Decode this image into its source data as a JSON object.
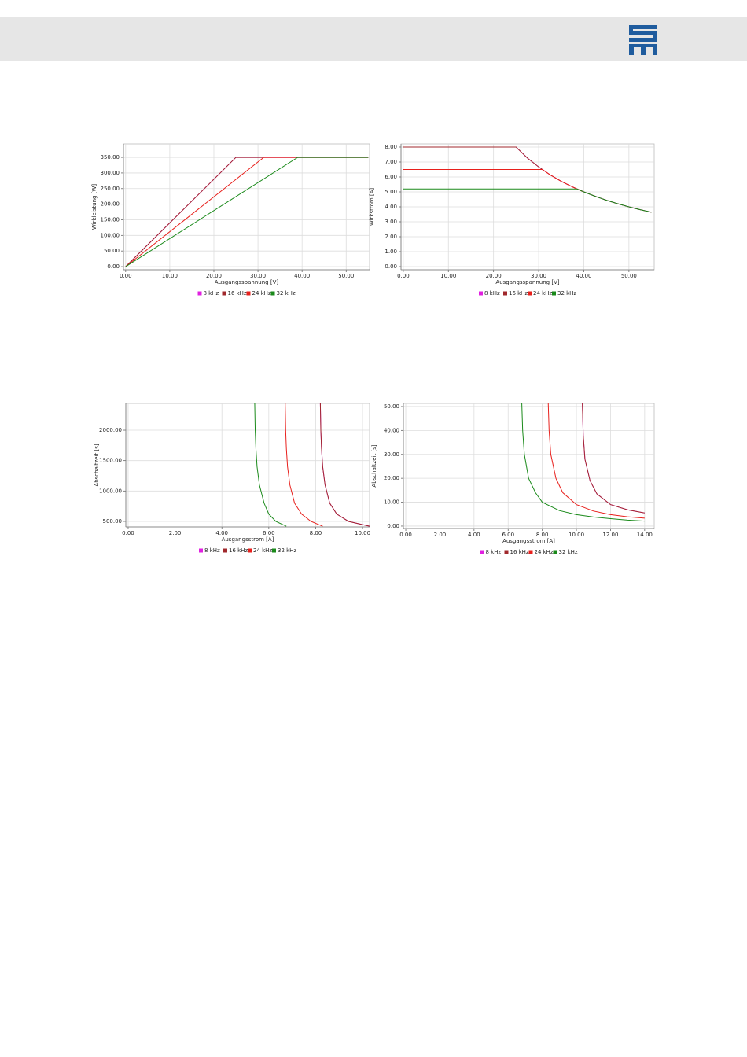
{
  "chart_data": [
    {
      "type": "line",
      "x_label": "Ausgangsspannung [V]",
      "y_label": "Wirkleistung [W]",
      "grid": true,
      "xlim": [
        -0.5,
        55.3
      ],
      "ylim": [
        -10,
        393
      ],
      "xticks": [
        {
          "value": 0,
          "label": "0.00"
        },
        {
          "value": 10,
          "label": "10.00"
        },
        {
          "value": 20,
          "label": "20.00"
        },
        {
          "value": 30,
          "label": "30.00"
        },
        {
          "value": 40,
          "label": "40.00"
        },
        {
          "value": 50,
          "label": "50.00"
        }
      ],
      "yticks": [
        {
          "value": 0,
          "label": "0.00"
        },
        {
          "value": 50,
          "label": "50.00"
        },
        {
          "value": 100,
          "label": "100.00"
        },
        {
          "value": 150,
          "label": "150.00"
        },
        {
          "value": 200,
          "label": "200.00"
        },
        {
          "value": 250,
          "label": "250.00"
        },
        {
          "value": 300,
          "label": "300.00"
        },
        {
          "value": 350,
          "label": "350.00"
        }
      ],
      "series": [
        {
          "name": "8 kHz",
          "color": "#e020e0",
          "x": [
            0,
            25,
            55
          ],
          "values": [
            0,
            350,
            350
          ]
        },
        {
          "name": "16 kHz",
          "color": "#a0282c",
          "x": [
            0,
            25,
            55
          ],
          "values": [
            0,
            350,
            350
          ]
        },
        {
          "name": "24 kHz",
          "color": "#e8201c",
          "x": [
            0,
            31.3,
            55
          ],
          "values": [
            0,
            350,
            350
          ]
        },
        {
          "name": "32 kHz",
          "color": "#1a8a1a",
          "x": [
            0,
            39,
            55
          ],
          "values": [
            0,
            350,
            350
          ]
        }
      ]
    },
    {
      "type": "line",
      "x_label": "Ausgangsspannung [V]",
      "y_label": "Wirkstrom [A]",
      "grid": true,
      "xlim": [
        -0.5,
        55.6
      ],
      "ylim": [
        -0.21,
        8.21
      ],
      "xticks": [
        {
          "value": 0,
          "label": "0.00"
        },
        {
          "value": 10,
          "label": "10.00"
        },
        {
          "value": 20,
          "label": "20.00"
        },
        {
          "value": 30,
          "label": "30.00"
        },
        {
          "value": 40,
          "label": "40.00"
        },
        {
          "value": 50,
          "label": "50.00"
        }
      ],
      "yticks": [
        {
          "value": 0,
          "label": "0.00"
        },
        {
          "value": 1,
          "label": "1.00"
        },
        {
          "value": 2,
          "label": "2.00"
        },
        {
          "value": 3,
          "label": "3.00"
        },
        {
          "value": 4,
          "label": "4.00"
        },
        {
          "value": 5,
          "label": "5.00"
        },
        {
          "value": 6,
          "label": "6.00"
        },
        {
          "value": 7,
          "label": "7.00"
        },
        {
          "value": 8,
          "label": "8.00"
        }
      ],
      "series": [
        {
          "name": "8 kHz",
          "color": "#e020e0",
          "x": [
            0,
            25,
            27.5,
            30,
            32.5,
            35,
            37.5,
            40,
            42.5,
            45,
            47.5,
            50,
            52.5,
            55
          ],
          "values": [
            8,
            8,
            7.27,
            6.67,
            6.15,
            5.71,
            5.33,
            5,
            4.71,
            4.44,
            4.21,
            4,
            3.81,
            3.64
          ]
        },
        {
          "name": "16 kHz",
          "color": "#a0282c",
          "x": [
            0,
            25,
            27.5,
            30,
            32.5,
            35,
            37.5,
            40,
            42.5,
            45,
            47.5,
            50,
            52.5,
            55
          ],
          "values": [
            8,
            8,
            7.27,
            6.67,
            6.15,
            5.71,
            5.33,
            5,
            4.71,
            4.44,
            4.21,
            4,
            3.81,
            3.64
          ]
        },
        {
          "name": "24 kHz",
          "color": "#e8201c",
          "x": [
            0,
            30.8,
            32.5,
            35,
            37.5,
            40
          ],
          "values": [
            6.5,
            6.5,
            6.15,
            5.71,
            5.33,
            5
          ]
        },
        {
          "name": "32 kHz",
          "color": "#1a8a1a",
          "x": [
            0,
            38.5,
            40,
            42.5,
            45,
            47.5,
            50,
            52.5,
            55
          ],
          "values": [
            5.2,
            5.2,
            5,
            4.71,
            4.44,
            4.21,
            4,
            3.81,
            3.64
          ]
        }
      ]
    },
    {
      "type": "line",
      "x_label": "Ausgangsstrom [A]",
      "y_label": "Abschaltzeit [s]",
      "grid": true,
      "xlim": [
        -0.1,
        10.3
      ],
      "ylim": [
        409,
        2440
      ],
      "xticks": [
        {
          "value": 0,
          "label": "0.00"
        },
        {
          "value": 2,
          "label": "2.00"
        },
        {
          "value": 4,
          "label": "4.00"
        },
        {
          "value": 6,
          "label": "6.00"
        },
        {
          "value": 8,
          "label": "8.00"
        },
        {
          "value": 10,
          "label": "10.00"
        }
      ],
      "yticks": [
        {
          "value": 500,
          "label": "500.00"
        },
        {
          "value": 1000,
          "label": "1000.00"
        },
        {
          "value": 1500,
          "label": "1500.00"
        },
        {
          "value": 2000,
          "label": "2000.00"
        }
      ],
      "series": [
        {
          "name": "8 kHz",
          "color": "#e020e0",
          "x": [
            8.2,
            8.22,
            8.25,
            8.3,
            8.4,
            8.6,
            8.9,
            9.4,
            10.3
          ],
          "values": [
            2440,
            2000,
            1700,
            1400,
            1100,
            800,
            620,
            500,
            420
          ]
        },
        {
          "name": "16 kHz",
          "color": "#a0282c",
          "x": [
            8.2,
            8.22,
            8.25,
            8.3,
            8.4,
            8.6,
            8.9,
            9.4,
            10.3
          ],
          "values": [
            2440,
            2000,
            1700,
            1400,
            1100,
            800,
            620,
            500,
            420
          ]
        },
        {
          "name": "24 kHz",
          "color": "#e8201c",
          "x": [
            6.7,
            6.72,
            6.75,
            6.8,
            6.9,
            7.1,
            7.4,
            7.8,
            8.3
          ],
          "values": [
            2440,
            2000,
            1700,
            1400,
            1100,
            800,
            620,
            500,
            420
          ]
        },
        {
          "name": "32 kHz",
          "color": "#1a8a1a",
          "x": [
            5.4,
            5.42,
            5.45,
            5.5,
            5.6,
            5.8,
            6.0,
            6.3,
            6.75
          ],
          "values": [
            2440,
            2000,
            1700,
            1400,
            1100,
            800,
            620,
            500,
            420
          ]
        }
      ]
    },
    {
      "type": "line",
      "x_label": "Ausgangsstrom [A]",
      "y_label": "Abschaltzeit [s]",
      "grid": true,
      "xlim": [
        -0.14,
        14.56
      ],
      "ylim": [
        -1,
        51.3
      ],
      "xticks": [
        {
          "value": 0,
          "label": "0.00"
        },
        {
          "value": 2,
          "label": "2.00"
        },
        {
          "value": 4,
          "label": "4.00"
        },
        {
          "value": 6,
          "label": "6.00"
        },
        {
          "value": 8,
          "label": "8.00"
        },
        {
          "value": 10,
          "label": "10.00"
        },
        {
          "value": 12,
          "label": "12.00"
        },
        {
          "value": 14,
          "label": "14.00"
        }
      ],
      "yticks": [
        {
          "value": 0,
          "label": "0.00"
        },
        {
          "value": 10,
          "label": "10.00"
        },
        {
          "value": 20,
          "label": "20.00"
        },
        {
          "value": 30,
          "label": "30.00"
        },
        {
          "value": 40,
          "label": "40.00"
        },
        {
          "value": 50,
          "label": "50.00"
        }
      ],
      "series": [
        {
          "name": "8 kHz",
          "color": "#e020e0",
          "x": [
            10.35,
            10.4,
            10.5,
            10.8,
            11.2,
            12,
            13,
            14
          ],
          "values": [
            51.3,
            38,
            28,
            19,
            13.5,
            9,
            6.8,
            5.5
          ]
        },
        {
          "name": "16 kHz",
          "color": "#a0282c",
          "x": [
            10.35,
            10.4,
            10.5,
            10.8,
            11.2,
            12,
            13,
            14
          ],
          "values": [
            51.3,
            38,
            28,
            19,
            13.5,
            9,
            6.8,
            5.5
          ]
        },
        {
          "name": "24 kHz",
          "color": "#e8201c",
          "x": [
            8.35,
            8.4,
            8.5,
            8.8,
            9.2,
            10,
            11,
            12,
            13,
            14
          ],
          "values": [
            51.3,
            40,
            30,
            20,
            14,
            9,
            6.3,
            4.8,
            3.9,
            3.3
          ]
        },
        {
          "name": "32 kHz",
          "color": "#1a8a1a",
          "x": [
            6.8,
            6.85,
            6.95,
            7.2,
            7.6,
            8,
            9,
            10,
            11,
            12,
            13,
            14
          ],
          "values": [
            51.3,
            40,
            30,
            20,
            14,
            10,
            6.5,
            4.8,
            3.8,
            3.1,
            2.5,
            2.1
          ]
        }
      ]
    }
  ]
}
